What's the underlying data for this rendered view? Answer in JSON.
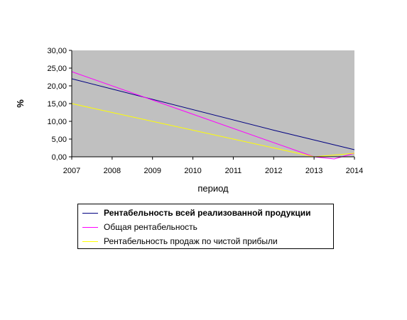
{
  "chart_data": {
    "type": "line",
    "xlabel": "период",
    "ylabel": "%",
    "categories": [
      "2007",
      "2008",
      "2009",
      "2010",
      "2011",
      "2012",
      "2013",
      "2014"
    ],
    "ylim": [
      0,
      30
    ],
    "y_ticks": [
      "0,00",
      "5,00",
      "10,00",
      "15,00",
      "20,00",
      "25,00",
      "30,00"
    ],
    "y_tick_values": [
      0,
      5,
      10,
      15,
      20,
      25,
      30
    ],
    "plot_background": "#c0c0c0",
    "grid": false,
    "legend_placement": "bottom",
    "series": [
      {
        "name": "Рентабельность всей реализованной продукции",
        "color": "#000080",
        "bold_label": true,
        "points": [
          [
            0,
            22.0
          ],
          [
            5,
            7.5
          ],
          [
            7,
            2.0
          ]
        ]
      },
      {
        "name": "Общая рентабельность",
        "color": "#ff00ff",
        "bold_label": false,
        "points": [
          [
            0,
            24.0
          ],
          [
            6,
            0.0
          ],
          [
            6.5,
            -0.6
          ],
          [
            7,
            1.0
          ]
        ]
      },
      {
        "name": "Рентабельность продаж по чистой прибыли",
        "color": "#ffff00",
        "bold_label": false,
        "points": [
          [
            0,
            15.0
          ],
          [
            6,
            0.0
          ],
          [
            7,
            1.0
          ]
        ]
      }
    ]
  }
}
